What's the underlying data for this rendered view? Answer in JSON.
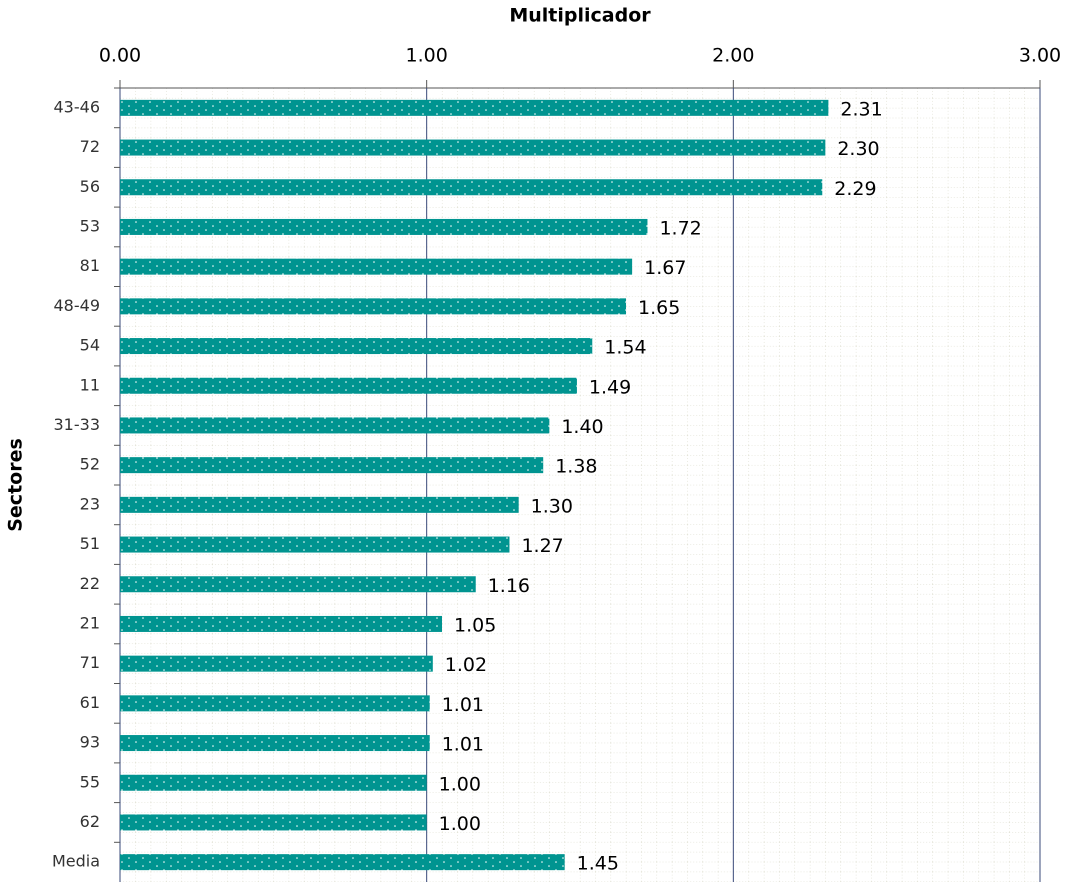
{
  "chart_data": {
    "type": "bar",
    "orientation": "horizontal",
    "x_label": "Multiplicador",
    "y_label": "Sectores",
    "categories": [
      "43-46",
      "72",
      "56",
      "53",
      "81",
      "48-49",
      "54",
      "11",
      "31-33",
      "52",
      "23",
      "51",
      "22",
      "21",
      "71",
      "61",
      "93",
      "55",
      "62",
      "Media"
    ],
    "values": [
      2.31,
      2.3,
      2.29,
      1.72,
      1.67,
      1.65,
      1.54,
      1.49,
      1.4,
      1.38,
      1.3,
      1.27,
      1.16,
      1.05,
      1.02,
      1.01,
      1.01,
      1.0,
      1.0,
      1.45
    ],
    "value_labels": [
      "2.31",
      "2.30",
      "2.29",
      "1.72",
      "1.67",
      "1.65",
      "1.54",
      "1.49",
      "1.40",
      "1.38",
      "1.30",
      "1.27",
      "1.16",
      "1.05",
      "1.02",
      "1.01",
      "1.01",
      "1.00",
      "1.00",
      "1.45"
    ],
    "color": "#009490",
    "xlim": [
      0,
      3
    ],
    "xticks": [
      {
        "value": 0,
        "label": "0.00"
      },
      {
        "value": 1,
        "label": "1.00"
      },
      {
        "value": 2,
        "label": "2.00"
      },
      {
        "value": 3,
        "label": "3.00"
      }
    ],
    "grid": true
  }
}
